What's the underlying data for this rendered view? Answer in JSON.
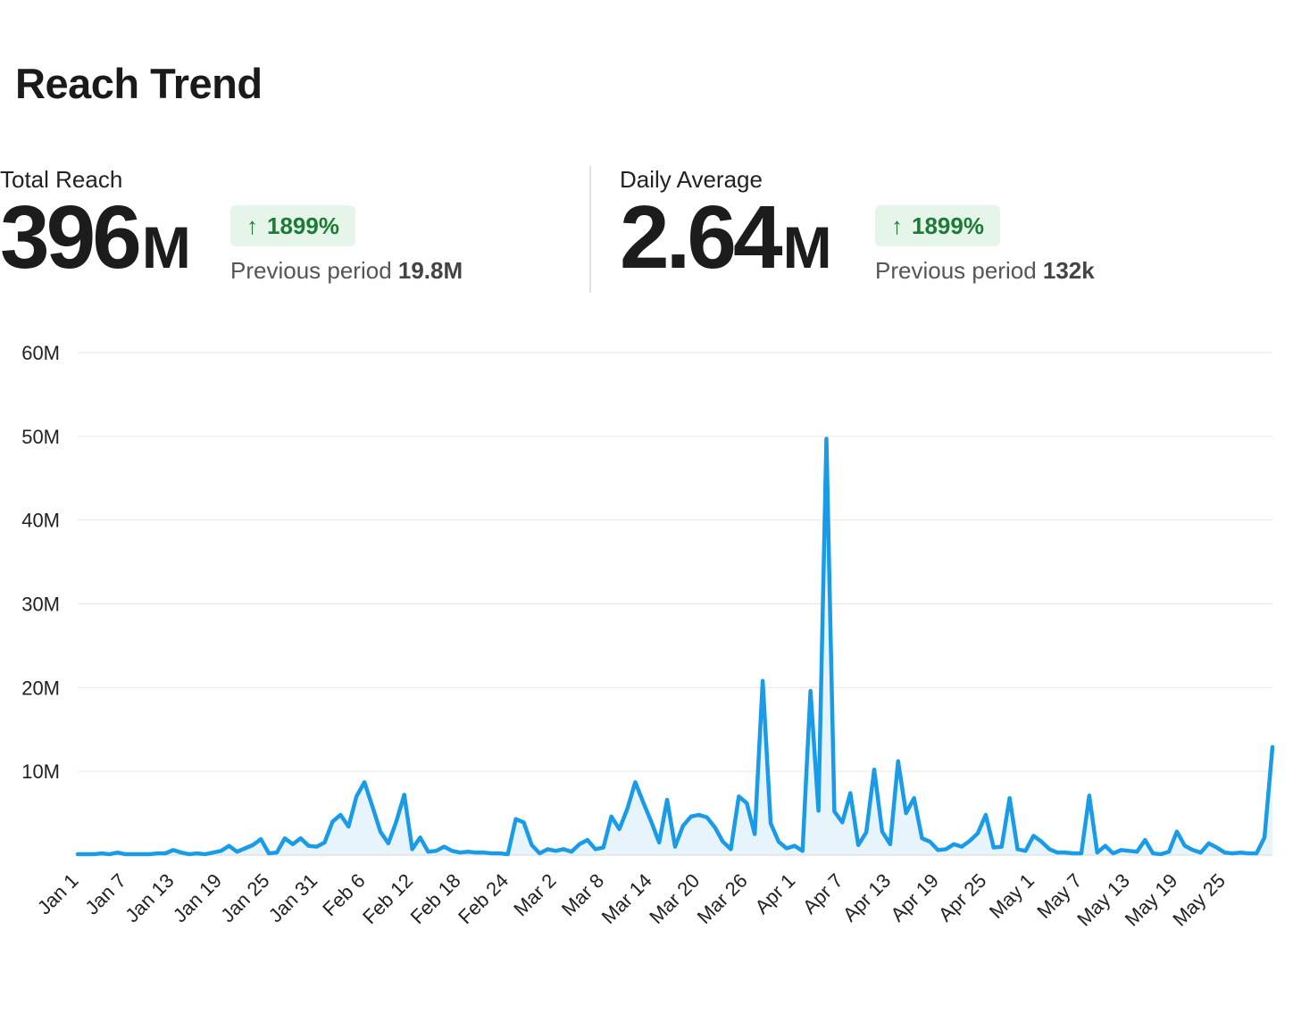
{
  "title": "Reach Trend",
  "stats": {
    "total": {
      "label": "Total Reach",
      "value": "396",
      "unit": "M",
      "change": "1899%",
      "previous_label": "Previous period",
      "previous_value": "19.8M"
    },
    "daily": {
      "label": "Daily Average",
      "value": "2.64",
      "unit": "M",
      "change": "1899%",
      "previous_label": "Previous period",
      "previous_value": "132k"
    }
  },
  "colors": {
    "line": "#1a9be8",
    "area": "#e8f4fc",
    "badge_bg": "#e6f5ea",
    "badge_text": "#1e7b35",
    "grid": "#e6e6e6"
  },
  "chart_data": {
    "type": "area",
    "title": "",
    "xlabel": "",
    "ylabel": "",
    "ylim": [
      0,
      60
    ],
    "y_unit": "M",
    "y_ticks": [
      "60M",
      "50M",
      "40M",
      "30M",
      "20M",
      "10M"
    ],
    "y_tick_values": [
      60,
      50,
      40,
      30,
      20,
      10
    ],
    "x_tick_labels": [
      "Jan 1",
      "Jan 7",
      "Jan 13",
      "Jan 19",
      "Jan 25",
      "Jan 31",
      "Feb 6",
      "Feb 12",
      "Feb 18",
      "Feb 24",
      "Mar 2",
      "Mar 8",
      "Mar 14",
      "Mar 20",
      "Mar 26",
      "Apr 1",
      "Apr 7",
      "Apr 13",
      "Apr 19",
      "Apr 25",
      "May 1",
      "May 7",
      "May 13",
      "May 19",
      "May 25"
    ],
    "x_tick_every_days": 6,
    "x_range": [
      "Jan 1",
      "May 30"
    ],
    "grid": true,
    "legend": "none",
    "series": [
      {
        "values": [
          0.1,
          0.1,
          0.1,
          0.2,
          0.1,
          0.3,
          0.1,
          0.1,
          0.1,
          0.1,
          0.2,
          0.2,
          0.6,
          0.3,
          0.1,
          0.2,
          0.1,
          0.3,
          0.5,
          1.1,
          0.4,
          0.8,
          1.2,
          1.9,
          0.2,
          0.3,
          2.0,
          1.3,
          2.0,
          1.1,
          1.0,
          1.5,
          4.0,
          4.8,
          3.4,
          7.0,
          8.7,
          5.8,
          2.8,
          1.4,
          4.0,
          7.2,
          0.7,
          2.1,
          0.4,
          0.5,
          1.0,
          0.5,
          0.3,
          0.4,
          0.3,
          0.3,
          0.2,
          0.2,
          0.1,
          4.3,
          3.9,
          1.2,
          0.2,
          0.7,
          0.5,
          0.7,
          0.4,
          1.3,
          1.8,
          0.7,
          0.9,
          4.6,
          3.1,
          5.5,
          8.7,
          6.3,
          4.0,
          1.5,
          6.6,
          1.0,
          3.5,
          4.6,
          4.8,
          4.5,
          3.3,
          1.6,
          0.7,
          7.0,
          6.2,
          2.5,
          20.8,
          3.8,
          1.6,
          0.8,
          1.1,
          0.5,
          19.6,
          5.3,
          49.7,
          5.2,
          3.9,
          7.4,
          1.2,
          2.7,
          10.2,
          2.8,
          1.3,
          11.2,
          5.0,
          6.8,
          2.0,
          1.6,
          0.6,
          0.7,
          1.3,
          1.0,
          1.7,
          2.6,
          4.8,
          0.9,
          1.0,
          6.8,
          0.7,
          0.5,
          2.3,
          1.6,
          0.7,
          0.3,
          0.3,
          0.2,
          0.2,
          7.1,
          0.3,
          1.1,
          0.2,
          0.6,
          0.5,
          0.4,
          1.8,
          0.2,
          0.1,
          0.4,
          2.8,
          1.1,
          0.6,
          0.3,
          1.4,
          0.9,
          0.3,
          0.2,
          0.3,
          0.2,
          0.2,
          2.1,
          12.9
        ]
      }
    ]
  }
}
